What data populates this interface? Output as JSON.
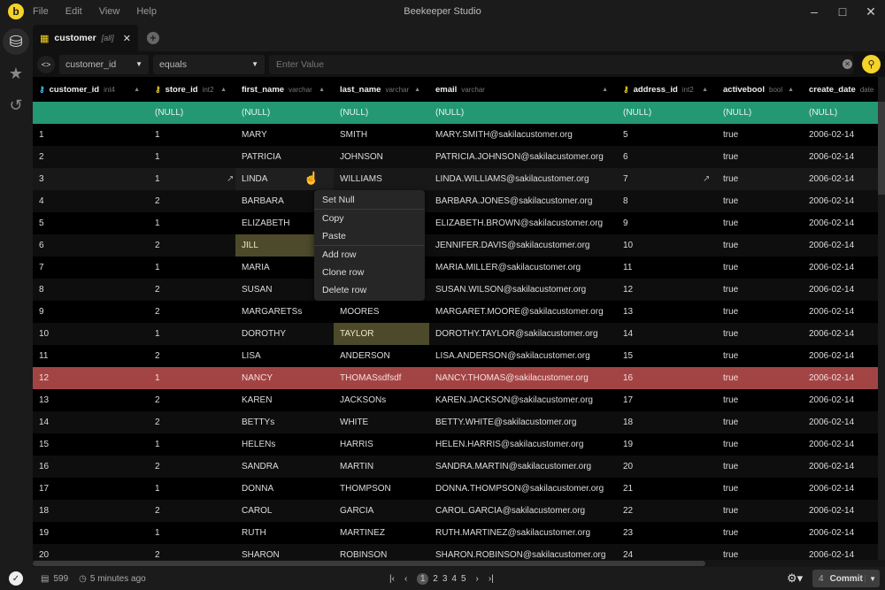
{
  "app": {
    "title": "Beekeeper Studio",
    "logo_letter": "b",
    "menu": [
      "File",
      "Edit",
      "View",
      "Help"
    ]
  },
  "tab": {
    "name": "customer",
    "scope": "[all]"
  },
  "filter": {
    "column": "customer_id",
    "operator": "equals",
    "value": "",
    "placeholder": "Enter Value"
  },
  "columns": [
    {
      "name": "customer_id",
      "type": "int4",
      "key": "primary"
    },
    {
      "name": "store_id",
      "type": "int2",
      "key": "foreign"
    },
    {
      "name": "first_name",
      "type": "varchar"
    },
    {
      "name": "last_name",
      "type": "varchar"
    },
    {
      "name": "email",
      "type": "varchar"
    },
    {
      "name": "address_id",
      "type": "int2",
      "key": "foreign"
    },
    {
      "name": "activebool",
      "type": "bool"
    },
    {
      "name": "create_date",
      "type": "date"
    }
  ],
  "new_row": [
    "",
    "(NULL)",
    "(NULL)",
    "(NULL)",
    "(NULL)",
    "(NULL)",
    "(NULL)",
    "(NULL)"
  ],
  "rows": [
    [
      "1",
      "1",
      "MARY",
      "SMITH",
      "MARY.SMITH@sakilacustomer.org",
      "5",
      "true",
      "2006-02-14"
    ],
    [
      "2",
      "1",
      "PATRICIA",
      "JOHNSON",
      "PATRICIA.JOHNSON@sakilacustomer.org",
      "6",
      "true",
      "2006-02-14"
    ],
    [
      "3",
      "1",
      "LINDA",
      "WILLIAMS",
      "LINDA.WILLIAMS@sakilacustomer.org",
      "7",
      "true",
      "2006-02-14"
    ],
    [
      "4",
      "2",
      "BARBARA",
      "",
      "BARBARA.JONES@sakilacustomer.org",
      "8",
      "true",
      "2006-02-14"
    ],
    [
      "5",
      "1",
      "ELIZABETH",
      "",
      "ELIZABETH.BROWN@sakilacustomer.org",
      "9",
      "true",
      "2006-02-14"
    ],
    [
      "6",
      "2",
      "JILL",
      "",
      "JENNIFER.DAVIS@sakilacustomer.org",
      "10",
      "true",
      "2006-02-14"
    ],
    [
      "7",
      "1",
      "MARIA",
      "",
      "MARIA.MILLER@sakilacustomer.org",
      "11",
      "true",
      "2006-02-14"
    ],
    [
      "8",
      "2",
      "SUSAN",
      "",
      "SUSAN.WILSON@sakilacustomer.org",
      "12",
      "true",
      "2006-02-14"
    ],
    [
      "9",
      "2",
      "MARGARETSs",
      "MOORES",
      "MARGARET.MOORE@sakilacustomer.org",
      "13",
      "true",
      "2006-02-14"
    ],
    [
      "10",
      "1",
      "DOROTHY",
      "TAYLOR",
      "DOROTHY.TAYLOR@sakilacustomer.org",
      "14",
      "true",
      "2006-02-14"
    ],
    [
      "11",
      "2",
      "LISA",
      "ANDERSON",
      "LISA.ANDERSON@sakilacustomer.org",
      "15",
      "true",
      "2006-02-14"
    ],
    [
      "12",
      "1",
      "NANCY",
      "THOMASsdfsdf",
      "NANCY.THOMAS@sakilacustomer.org",
      "16",
      "true",
      "2006-02-14"
    ],
    [
      "13",
      "2",
      "KAREN",
      "JACKSONs",
      "KAREN.JACKSON@sakilacustomer.org",
      "17",
      "true",
      "2006-02-14"
    ],
    [
      "14",
      "2",
      "BETTYs",
      "WHITE",
      "BETTY.WHITE@sakilacustomer.org",
      "18",
      "true",
      "2006-02-14"
    ],
    [
      "15",
      "1",
      "HELENs",
      "HARRIS",
      "HELEN.HARRIS@sakilacustomer.org",
      "19",
      "true",
      "2006-02-14"
    ],
    [
      "16",
      "2",
      "SANDRA",
      "MARTIN",
      "SANDRA.MARTIN@sakilacustomer.org",
      "20",
      "true",
      "2006-02-14"
    ],
    [
      "17",
      "1",
      "DONNA",
      "THOMPSON",
      "DONNA.THOMPSON@sakilacustomer.org",
      "21",
      "true",
      "2006-02-14"
    ],
    [
      "18",
      "2",
      "CAROL",
      "GARCIA",
      "CAROL.GARCIA@sakilacustomer.org",
      "22",
      "true",
      "2006-02-14"
    ],
    [
      "19",
      "1",
      "RUTH",
      "MARTINEZ",
      "RUTH.MARTINEZ@sakilacustomer.org",
      "23",
      "true",
      "2006-02-14"
    ],
    [
      "20",
      "2",
      "SHARON",
      "ROBINSON",
      "SHARON.ROBINSON@sakilacustomer.org",
      "24",
      "true",
      "2006-02-14"
    ]
  ],
  "row_states": {
    "hovered": 3,
    "deleted": 12,
    "edited_cells": [
      [
        6,
        2
      ],
      [
        10,
        3
      ]
    ]
  },
  "context_menu": [
    "Set Null",
    "Copy",
    "Paste",
    "Add row",
    "Clone row",
    "Delete row"
  ],
  "status": {
    "row_count": "599",
    "last_updated": "5 minutes ago",
    "pages": [
      "1",
      "2",
      "3",
      "4",
      "5"
    ],
    "current_page": "1",
    "pending_changes": "4",
    "commit_label": "Commit"
  },
  "colors": {
    "accent": "#f5d327",
    "new_row": "#239872",
    "deleted_row": "#a34444",
    "edited_cell": "#4d4a2b"
  }
}
